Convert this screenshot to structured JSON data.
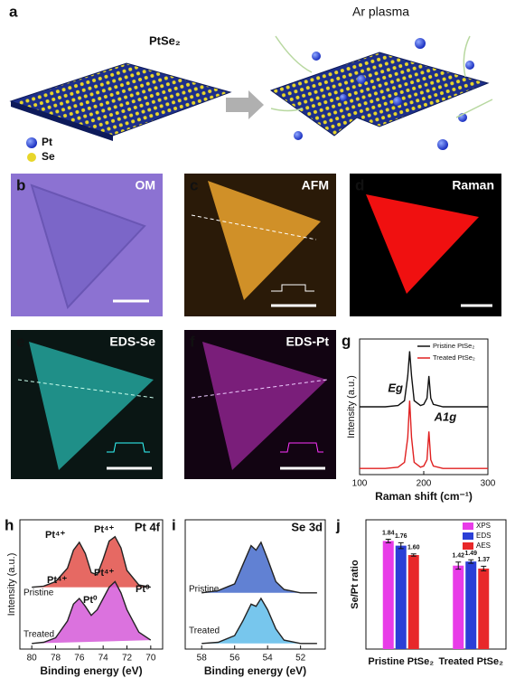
{
  "panel_a": {
    "label": "a",
    "material": "PtSe₂",
    "process": "Ar plasma",
    "legend": [
      "Pt",
      "Se"
    ]
  },
  "image_panels": [
    {
      "label": "b",
      "title": "OM"
    },
    {
      "label": "c",
      "title": "AFM"
    },
    {
      "label": "d",
      "title": "Raman"
    },
    {
      "label": "e",
      "title": "EDS-Se"
    },
    {
      "label": "f",
      "title": "EDS-Pt"
    }
  ],
  "chart_data": [
    {
      "type": "line",
      "label": "g",
      "xlabel": "Raman shift (cm⁻¹)",
      "ylabel": "Intensity (a.u.)",
      "x": [
        100,
        120,
        140,
        160,
        170,
        175,
        178,
        181,
        185,
        195,
        200,
        205,
        208,
        211,
        215,
        230,
        260,
        300
      ],
      "xlim": [
        100,
        300
      ],
      "xticks": [
        100,
        200,
        300
      ],
      "ylim": [
        0,
        1.1
      ],
      "series": [
        {
          "name": "Pristine PtSe₂",
          "color": "#111111",
          "values": [
            0.55,
            0.55,
            0.55,
            0.56,
            0.6,
            0.8,
            1.0,
            0.8,
            0.6,
            0.56,
            0.57,
            0.62,
            0.8,
            0.62,
            0.57,
            0.55,
            0.55,
            0.55
          ]
        },
        {
          "name": "Treated PtSe₂",
          "color": "#e02020",
          "values": [
            0.05,
            0.05,
            0.05,
            0.06,
            0.1,
            0.3,
            0.6,
            0.3,
            0.1,
            0.06,
            0.07,
            0.12,
            0.35,
            0.12,
            0.07,
            0.05,
            0.05,
            0.05
          ]
        }
      ],
      "annotations": [
        "Eg",
        "A1g"
      ]
    },
    {
      "type": "line",
      "label": "h",
      "title": "Pt 4f",
      "xlabel": "Binding energy (eV)",
      "ylabel": "Intensity (a.u.)",
      "x": [
        80,
        79,
        78,
        77,
        76.5,
        76,
        75.5,
        75,
        74.5,
        74,
        73.5,
        73,
        72.5,
        72,
        71,
        70
      ],
      "xlim": [
        81,
        69
      ],
      "xticks": [
        80,
        78,
        76,
        74,
        72,
        70
      ],
      "ylim": [
        0,
        1.15
      ],
      "fill": true,
      "series": [
        {
          "name": "Pristine",
          "color": "#e0443c",
          "values": [
            0.55,
            0.56,
            0.6,
            0.72,
            0.88,
            0.95,
            0.85,
            0.68,
            0.66,
            0.8,
            0.96,
            1.0,
            0.9,
            0.7,
            0.57,
            0.55
          ]
        },
        {
          "name": "Treated",
          "color": "#d24fd6",
          "values": [
            0.05,
            0.06,
            0.1,
            0.25,
            0.4,
            0.45,
            0.38,
            0.3,
            0.35,
            0.45,
            0.55,
            0.6,
            0.5,
            0.35,
            0.15,
            0.08
          ]
        }
      ],
      "annotations": [
        "Pt⁴⁺",
        "Pt⁴⁺",
        "Pt⁴⁺",
        "Pt⁴⁺",
        "Pt⁰",
        "Pt⁰"
      ]
    },
    {
      "type": "line",
      "label": "i",
      "title": "Se 3d",
      "xlabel": "Binding energy (eV)",
      "x": [
        58,
        57,
        56,
        55.5,
        55,
        54.7,
        54.4,
        54,
        53.5,
        53,
        52,
        51
      ],
      "xlim": [
        59,
        50.5
      ],
      "xticks": [
        58,
        56,
        54,
        52
      ],
      "ylim": [
        0,
        1.15
      ],
      "fill": true,
      "series": [
        {
          "name": "Pristine",
          "color": "#3a62c8",
          "values": [
            0.5,
            0.52,
            0.58,
            0.75,
            0.92,
            0.88,
            0.95,
            0.8,
            0.6,
            0.53,
            0.5,
            0.5
          ]
        },
        {
          "name": "Treated",
          "color": "#55b8e8",
          "values": [
            0.05,
            0.06,
            0.12,
            0.25,
            0.4,
            0.38,
            0.45,
            0.35,
            0.18,
            0.08,
            0.05,
            0.05
          ]
        }
      ]
    },
    {
      "type": "bar",
      "label": "j",
      "ylabel": "Se/Pt ratio",
      "categories": [
        "Pristine PtSe₂",
        "Treated PtSe₂"
      ],
      "ylim": [
        0,
        2.2
      ],
      "series": [
        {
          "name": "XPS",
          "color": "#e83ce8",
          "values": [
            1.84,
            1.42
          ],
          "value_labels": [
            "1.84",
            "1.42"
          ],
          "errors": [
            0.03,
            0.06
          ]
        },
        {
          "name": "EDS",
          "color": "#2b3fd6",
          "values": [
            1.76,
            1.49
          ],
          "value_labels": [
            "1.76",
            "1.49"
          ],
          "errors": [
            0.05,
            0.03
          ]
        },
        {
          "name": "AES",
          "color": "#e8282a",
          "values": [
            1.6,
            1.37
          ],
          "value_labels": [
            "1.60",
            "1.37"
          ],
          "errors": [
            0.02,
            0.04
          ]
        }
      ]
    }
  ]
}
